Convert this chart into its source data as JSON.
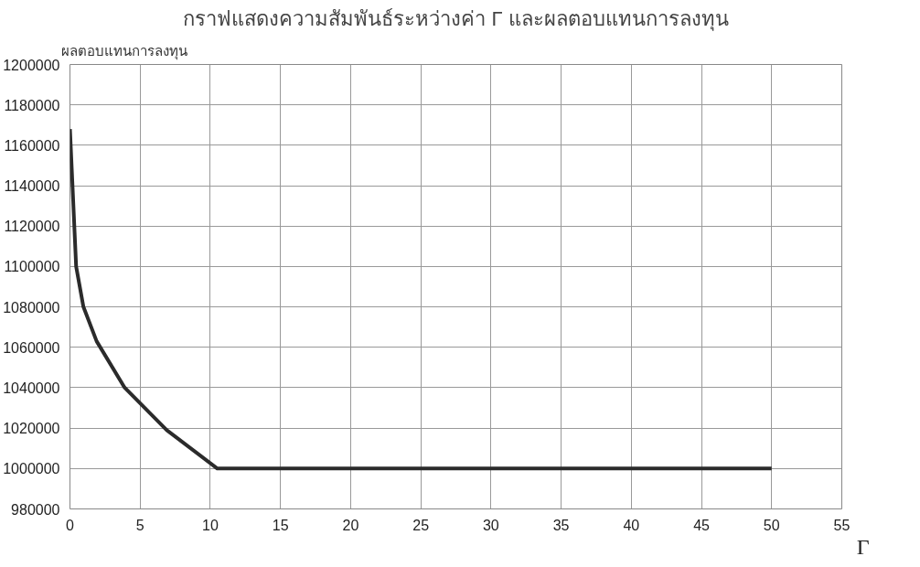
{
  "chart_data": {
    "type": "line",
    "title": "กราฟแสดงความสัมพันธ์ระหว่างค่า Γ และผลตอบแทนการลงทุน",
    "ylabel": "ผลตอบแทนการลงทุน",
    "xlabel": "Γ",
    "x": [
      0,
      0.44,
      0.96,
      1.9,
      3.9,
      6.9,
      10.5,
      15,
      20,
      25,
      30,
      35,
      40,
      45,
      50
    ],
    "series": [
      {
        "color": "#2b2b2b",
        "values": [
          1168000,
          1100000,
          1080000,
          1063000,
          1040000,
          1019000,
          1000000,
          1000000,
          1000000,
          1000000,
          1000000,
          1000000,
          1000000,
          1000000,
          1000000
        ]
      }
    ],
    "xlim": [
      0,
      55
    ],
    "xticks": [
      0,
      5,
      10,
      15,
      20,
      25,
      30,
      35,
      40,
      45,
      50,
      55
    ],
    "ylim": [
      980000,
      1200000
    ],
    "yticks": [
      980000,
      1000000,
      1020000,
      1040000,
      1060000,
      1080000,
      1100000,
      1120000,
      1140000,
      1160000,
      1180000,
      1200000
    ],
    "grid": true,
    "marker": "none",
    "line_style": "solid"
  }
}
